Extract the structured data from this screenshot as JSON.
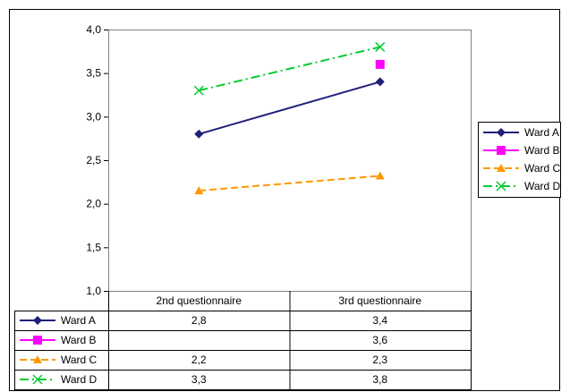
{
  "chart_data": {
    "type": "line",
    "categories": [
      "2nd questionnaire",
      "3rd questionnaire"
    ],
    "ylim": [
      1.0,
      4.0
    ],
    "yticks": [
      "1,0",
      "1,5",
      "2,0",
      "2,5",
      "3,0",
      "3,5",
      "4,0"
    ],
    "grid": false,
    "legend": "right",
    "series": [
      {
        "name": "Ward A",
        "values": [
          2.8,
          3.4
        ],
        "labels": [
          "2,8",
          "3,4"
        ],
        "color": "#1f1f7a",
        "marker": "diamond",
        "dash": "solid"
      },
      {
        "name": "Ward B",
        "values": [
          null,
          3.6
        ],
        "labels": [
          "",
          "3,6"
        ],
        "color": "#ff00ff",
        "marker": "square",
        "dash": "solid"
      },
      {
        "name": "Ward C",
        "values": [
          2.15,
          2.32
        ],
        "labels": [
          "2,2",
          "2,3"
        ],
        "color": "#ff9900",
        "marker": "triangle",
        "dash": "dash"
      },
      {
        "name": "Ward D",
        "values": [
          3.3,
          3.8
        ],
        "labels": [
          "3,3",
          "3,8"
        ],
        "color": "#00cc33",
        "marker": "x",
        "dash": "dashdot"
      }
    ]
  }
}
